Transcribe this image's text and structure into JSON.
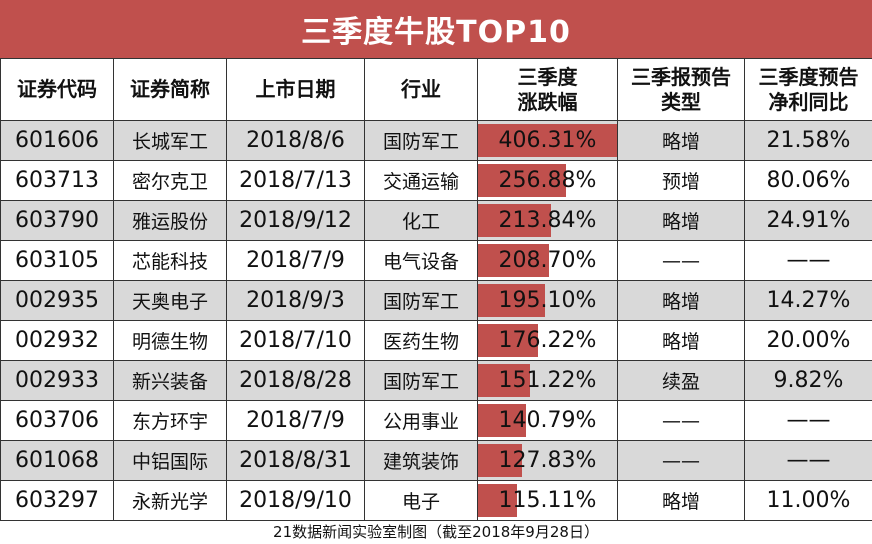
{
  "title": "三季度牛股TOP10",
  "headers": {
    "code": "证券代码",
    "name": "证券简称",
    "listing_date": "上市日期",
    "industry": "行业",
    "change_line1": "三季度",
    "change_line2": "涨跌幅",
    "forecast_type_line1": "三季报预告",
    "forecast_type_line2": "类型",
    "forecast_profit_line1": "三季度预告",
    "forecast_profit_line2": "净利同比"
  },
  "rows": [
    {
      "code": "601606",
      "name": "长城军工",
      "date": "2018/8/6",
      "industry": "国防军工",
      "change": "406.31%",
      "change_value": 406.31,
      "forecast_type": "略增",
      "profit_yoy": "21.58%"
    },
    {
      "code": "603713",
      "name": "密尔克卫",
      "date": "2018/7/13",
      "industry": "交通运输",
      "change": "256.88%",
      "change_value": 256.88,
      "forecast_type": "预增",
      "profit_yoy": "80.06%"
    },
    {
      "code": "603790",
      "name": "雅运股份",
      "date": "2018/9/12",
      "industry": "化工",
      "change": "213.84%",
      "change_value": 213.84,
      "forecast_type": "略增",
      "profit_yoy": "24.91%"
    },
    {
      "code": "603105",
      "name": "芯能科技",
      "date": "2018/7/9",
      "industry": "电气设备",
      "change": "208.70%",
      "change_value": 208.7,
      "forecast_type": "——",
      "profit_yoy": "——"
    },
    {
      "code": "002935",
      "name": "天奥电子",
      "date": "2018/9/3",
      "industry": "国防军工",
      "change": "195.10%",
      "change_value": 195.1,
      "forecast_type": "略增",
      "profit_yoy": "14.27%"
    },
    {
      "code": "002932",
      "name": "明德生物",
      "date": "2018/7/10",
      "industry": "医药生物",
      "change": "176.22%",
      "change_value": 176.22,
      "forecast_type": "略增",
      "profit_yoy": "20.00%"
    },
    {
      "code": "002933",
      "name": "新兴装备",
      "date": "2018/8/28",
      "industry": "国防军工",
      "change": "151.22%",
      "change_value": 151.22,
      "forecast_type": "续盈",
      "profit_yoy": "9.82%"
    },
    {
      "code": "603706",
      "name": "东方环宇",
      "date": "2018/7/9",
      "industry": "公用事业",
      "change": "140.79%",
      "change_value": 140.79,
      "forecast_type": "——",
      "profit_yoy": "——"
    },
    {
      "code": "601068",
      "name": "中铝国际",
      "date": "2018/8/31",
      "industry": "建筑装饰",
      "change": "127.83%",
      "change_value": 127.83,
      "forecast_type": "——",
      "profit_yoy": "——"
    },
    {
      "code": "603297",
      "name": "永新光学",
      "date": "2018/9/10",
      "industry": "电子",
      "change": "115.11%",
      "change_value": 115.11,
      "forecast_type": "略增",
      "profit_yoy": "11.00%"
    }
  ],
  "change_bar_max": 406.31,
  "colors": {
    "accent": "#c0504d",
    "row_shade": "#d9d9d9"
  },
  "footer": "21数据新闻实验室制图（截至2018年9月28日）"
}
